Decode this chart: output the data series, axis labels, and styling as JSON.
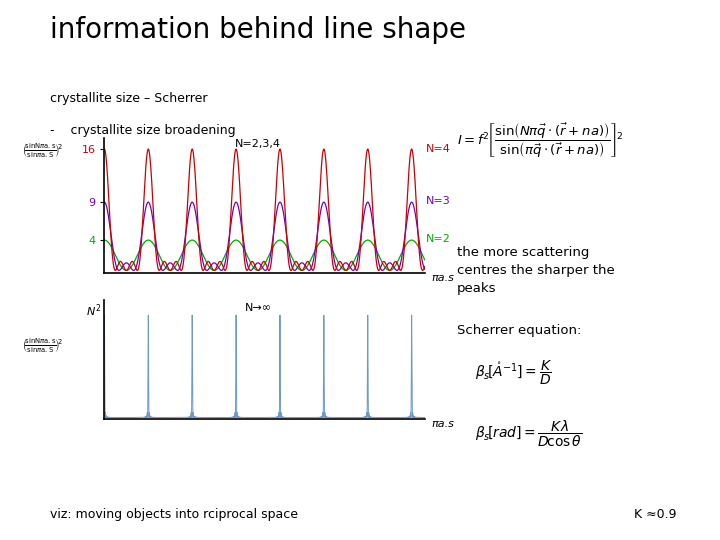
{
  "title": "information behind line shape",
  "subtitle1": "crystallite size – Scherrer",
  "subtitle2": "-    crystallite size broadening",
  "bg_color": "#ffffff",
  "top_plot": {
    "title": "N=2,3,4",
    "xlabel": "πa.s",
    "yticks": [
      4,
      9,
      16
    ],
    "N2_color": "#00aa00",
    "N3_color": "#7700bb",
    "N4_color": "#cc0000",
    "N_values": [
      2,
      3,
      4
    ],
    "labels": [
      "N=2",
      "N=3",
      "N=4"
    ]
  },
  "bottom_plot": {
    "title": "N→∞",
    "xlabel": "πa.s",
    "spike_color": "#5588bb"
  },
  "right_text1": "the more scattering\ncentres the sharper the\npeaks",
  "right_text2": "Scherrer equation:",
  "bottom_text": "viz: moving objects into rciprocal space",
  "bottom_right": "K ≈0.9"
}
